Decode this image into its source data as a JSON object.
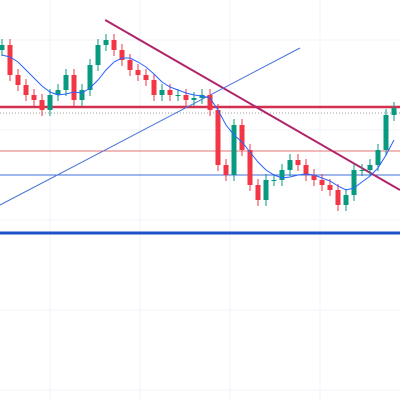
{
  "chart_data": {
    "type": "candlestick",
    "xlim": [
      -0.25,
      49.75
    ],
    "ylim": [
      0,
      400
    ],
    "grid": true,
    "up_color": "#089981",
    "down_color": "#f23645",
    "open": [
      350,
      355,
      325,
      315,
      305,
      300,
      290,
      305,
      310,
      325,
      300,
      310,
      335,
      355,
      360,
      350,
      340,
      330,
      325,
      320,
      305,
      310,
      305,
      305,
      300,
      302,
      305,
      290,
      235,
      225,
      275,
      250,
      215,
      200,
      220,
      220,
      230,
      240,
      235,
      225,
      220,
      215,
      210,
      195,
      205,
      230,
      230,
      235,
      250,
      285
    ],
    "high": [
      361,
      361,
      331,
      321,
      311,
      306,
      311,
      316,
      331,
      331,
      316,
      341,
      361,
      366,
      366,
      356,
      346,
      336,
      331,
      326,
      316,
      316,
      311,
      311,
      308,
      311,
      311,
      296,
      241,
      281,
      281,
      256,
      221,
      226,
      226,
      236,
      246,
      246,
      241,
      231,
      226,
      221,
      216,
      211,
      236,
      236,
      241,
      256,
      291,
      298
    ],
    "low": [
      344,
      319,
      309,
      299,
      294,
      284,
      284,
      299,
      304,
      294,
      294,
      304,
      329,
      349,
      344,
      334,
      324,
      319,
      314,
      299,
      299,
      299,
      299,
      294,
      294,
      296,
      284,
      229,
      219,
      219,
      244,
      209,
      194,
      194,
      214,
      214,
      224,
      229,
      219,
      214,
      209,
      204,
      189,
      189,
      199,
      224,
      224,
      229,
      244,
      279
    ],
    "close": [
      355,
      325,
      315,
      305,
      300,
      290,
      305,
      310,
      325,
      300,
      310,
      335,
      355,
      360,
      350,
      340,
      330,
      325,
      320,
      305,
      310,
      305,
      305,
      300,
      302,
      305,
      290,
      235,
      225,
      275,
      250,
      215,
      200,
      220,
      220,
      230,
      240,
      235,
      225,
      220,
      215,
      210,
      195,
      205,
      230,
      230,
      235,
      250,
      285,
      292
    ],
    "ma": {
      "color": "#2962ff",
      "values": [
        345,
        343,
        338,
        330,
        322,
        314,
        308,
        305,
        306,
        308,
        307,
        312,
        320,
        330,
        338,
        342,
        342,
        338,
        333,
        326,
        318,
        313,
        310,
        307,
        305,
        304,
        302,
        290,
        275,
        265,
        258,
        248,
        238,
        230,
        225,
        222,
        223,
        225,
        226,
        225,
        222,
        219,
        214,
        210,
        212,
        218,
        224,
        232,
        245,
        260
      ]
    },
    "levels": [
      {
        "value": 293,
        "color": "#d32f4f",
        "width": 2.5
      },
      {
        "value": 249,
        "color": "#e57373",
        "width": 1
      },
      {
        "value": 225,
        "color": "#3f6fd8",
        "width": 1
      },
      {
        "value": 167,
        "color": "#1e50c8",
        "width": 3
      }
    ],
    "price_line": {
      "value": 287,
      "color": "#9e9e9e"
    },
    "trendlines": [
      {
        "color": "#b0246a",
        "width": 2,
        "x": [
          12.9,
          49.75
        ],
        "y": [
          380,
          210
        ]
      },
      {
        "color": "#4a74d8",
        "width": 1,
        "x": [
          -0.25,
          37.25
        ],
        "y": [
          195,
          352
        ]
      }
    ]
  }
}
